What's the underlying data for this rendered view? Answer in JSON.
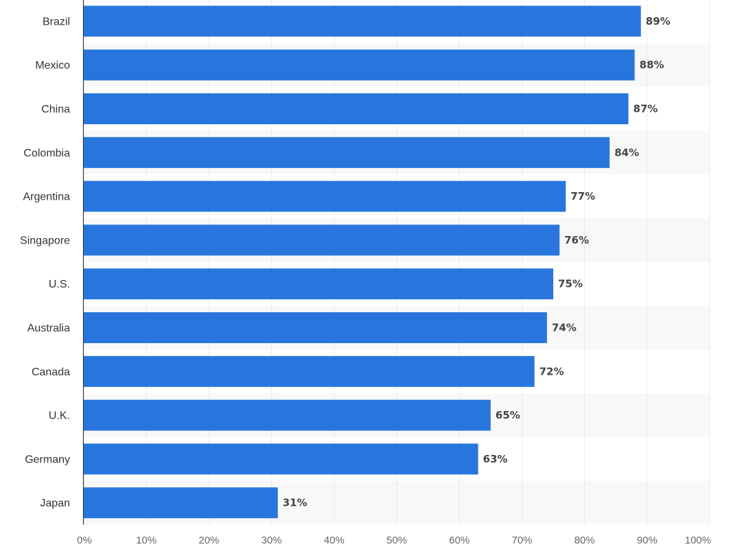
{
  "chart_data": {
    "type": "bar",
    "orientation": "horizontal",
    "categories": [
      "Brazil",
      "Mexico",
      "China",
      "Colombia",
      "Argentina",
      "Singapore",
      "U.S.",
      "Australia",
      "Canada",
      "U.K.",
      "Germany",
      "Japan"
    ],
    "values": [
      89,
      88,
      87,
      84,
      77,
      76,
      75,
      74,
      72,
      65,
      63,
      31
    ],
    "value_labels": [
      "89%",
      "88%",
      "87%",
      "84%",
      "77%",
      "76%",
      "75%",
      "74%",
      "72%",
      "65%",
      "63%",
      "31%"
    ],
    "x_ticks": [
      "0%",
      "10%",
      "20%",
      "30%",
      "40%",
      "50%",
      "60%",
      "70%",
      "80%",
      "90%",
      "100%"
    ],
    "xlim": [
      0,
      100
    ],
    "grid": "vertical dotted",
    "bar_color": "#2876dd",
    "band_color": "#f8f8f8",
    "title": "",
    "xlabel": "",
    "ylabel": ""
  }
}
